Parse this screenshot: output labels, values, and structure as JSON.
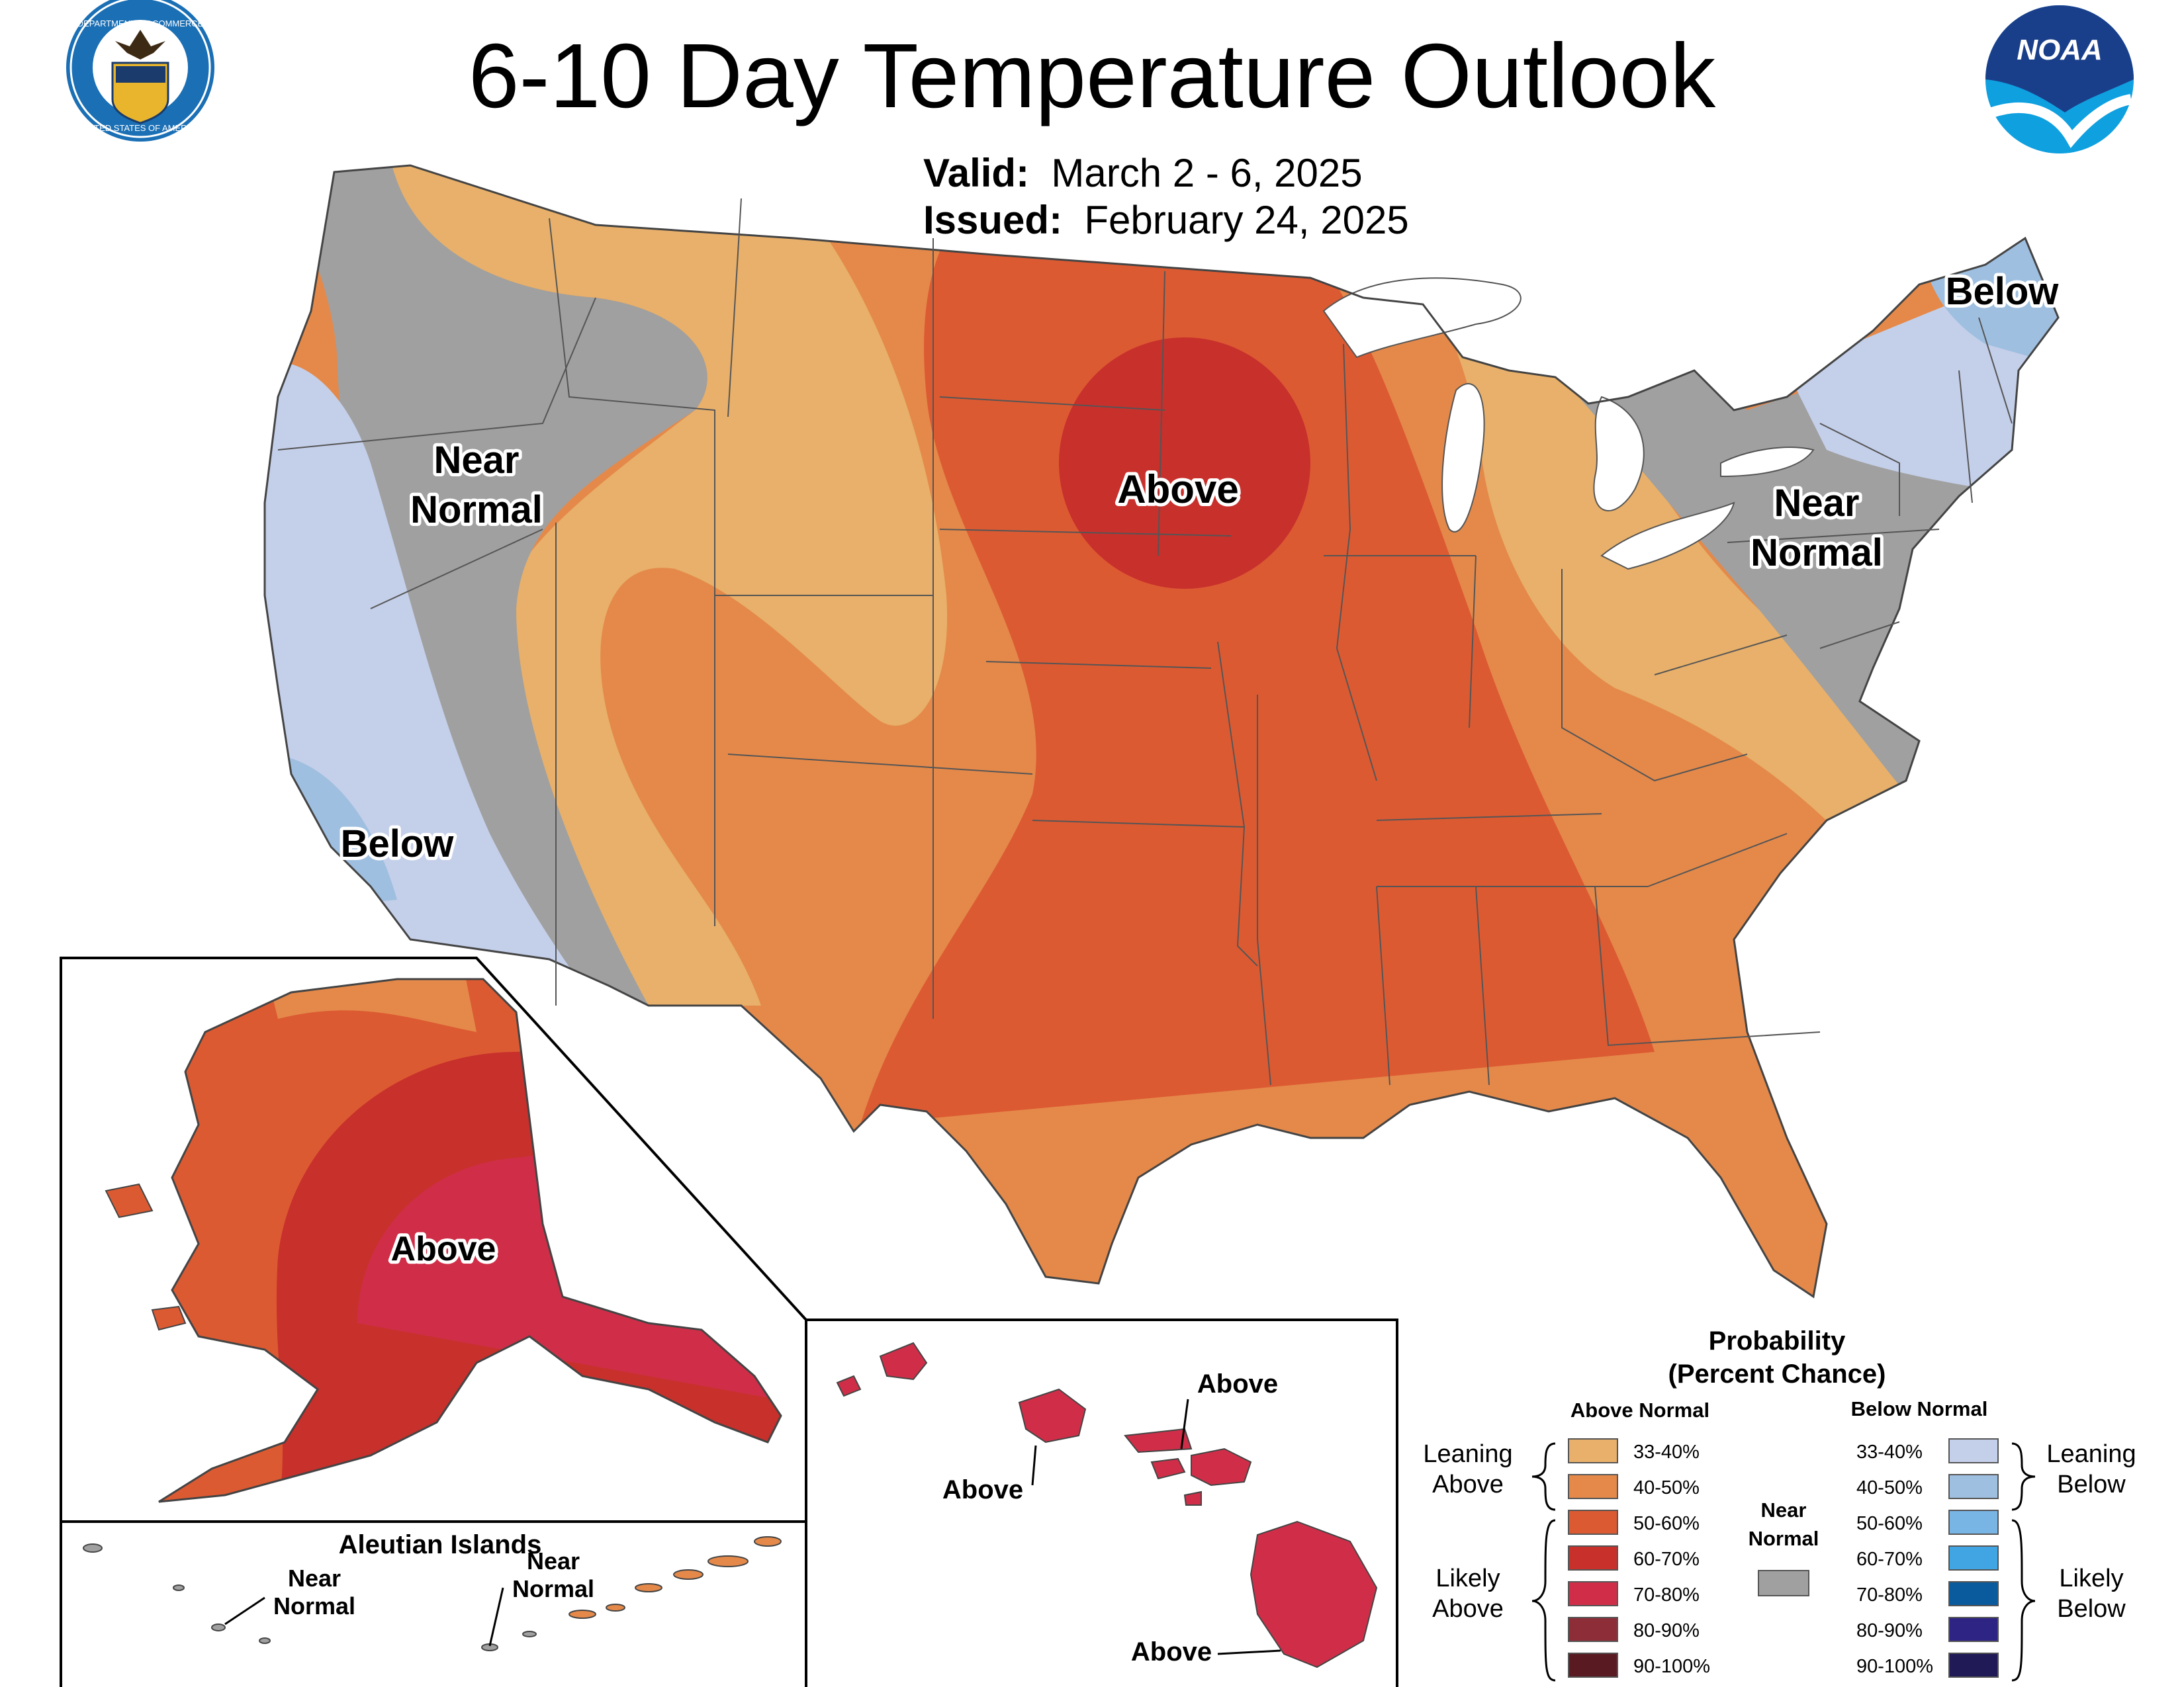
{
  "title": "6-10 Day Temperature Outlook",
  "valid": {
    "label": "Valid:",
    "value": "March 2 - 6, 2025"
  },
  "issued": {
    "label": "Issued:",
    "value": "February 24, 2025"
  },
  "logos": {
    "commerce_seal_text": [
      "DEPARTMENT OF COMMERCE",
      "UNITED STATES OF AMERICA"
    ],
    "noaa_text": "NOAA"
  },
  "conus_labels": {
    "near_normal_west": [
      "Near",
      "Normal"
    ],
    "above_plains": "Above",
    "below_california": "Below",
    "below_maine": "Below",
    "near_normal_east": [
      "Near",
      "Normal"
    ]
  },
  "alaska": {
    "label": "Above"
  },
  "aleutian": {
    "title": "Aleutian Islands",
    "near_normal_left": [
      "Near",
      "Normal"
    ],
    "near_normal_right": [
      "Near",
      "Normal"
    ]
  },
  "hawaii": {
    "labels": [
      "Above",
      "Above",
      "Above"
    ]
  },
  "legend": {
    "title": [
      "Probability",
      "(Percent Chance)"
    ],
    "above_header": "Above Normal",
    "below_header": "Below Normal",
    "leaning_above": [
      "Leaning",
      "Above"
    ],
    "likely_above": [
      "Likely",
      "Above"
    ],
    "leaning_below": [
      "Leaning",
      "Below"
    ],
    "likely_below": [
      "Likely",
      "Below"
    ],
    "near_normal": [
      "Near",
      "Normal"
    ],
    "near_normal_color": "#a0a0a0",
    "above": [
      {
        "label": "33-40%",
        "color": "#e8b06a"
      },
      {
        "label": "40-50%",
        "color": "#e4894a"
      },
      {
        "label": "50-60%",
        "color": "#dc5a32"
      },
      {
        "label": "60-70%",
        "color": "#c8302c"
      },
      {
        "label": "70-80%",
        "color": "#d02e48"
      },
      {
        "label": "80-90%",
        "color": "#8c2d38"
      },
      {
        "label": "90-100%",
        "color": "#5a1a22"
      }
    ],
    "below": [
      {
        "label": "33-40%",
        "color": "#c4cfe9"
      },
      {
        "label": "40-50%",
        "color": "#9fbfe0"
      },
      {
        "label": "50-60%",
        "color": "#78b4e4"
      },
      {
        "label": "60-70%",
        "color": "#41a5e3"
      },
      {
        "label": "70-80%",
        "color": "#0a5a9e"
      },
      {
        "label": "80-90%",
        "color": "#2e2483"
      },
      {
        "label": "90-100%",
        "color": "#201a57"
      }
    ]
  }
}
